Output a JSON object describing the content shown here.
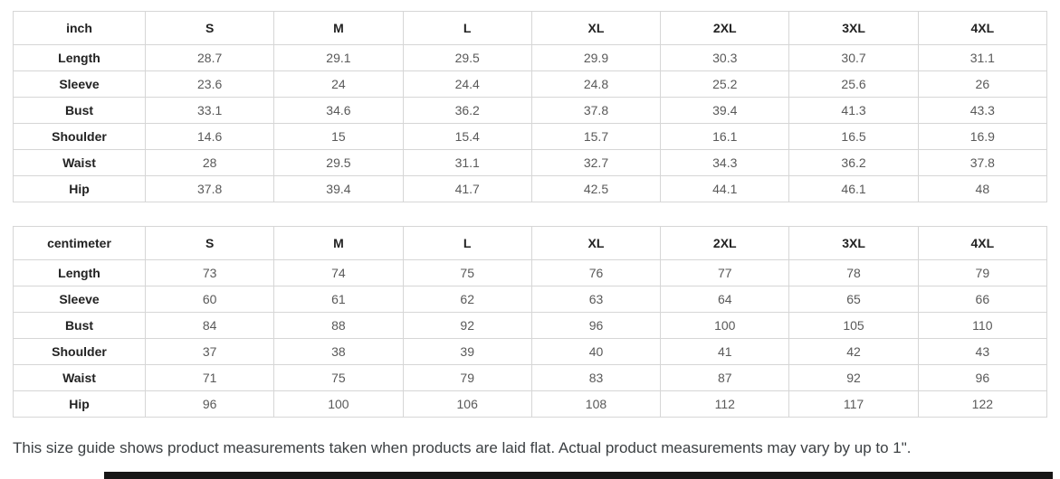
{
  "tables": [
    {
      "unit_label": "inch",
      "sizes": [
        "S",
        "M",
        "L",
        "XL",
        "2XL",
        "3XL",
        "4XL"
      ],
      "rows": [
        {
          "label": "Length",
          "values": [
            "28.7",
            "29.1",
            "29.5",
            "29.9",
            "30.3",
            "30.7",
            "31.1"
          ]
        },
        {
          "label": "Sleeve",
          "values": [
            "23.6",
            "24",
            "24.4",
            "24.8",
            "25.2",
            "25.6",
            "26"
          ]
        },
        {
          "label": "Bust",
          "values": [
            "33.1",
            "34.6",
            "36.2",
            "37.8",
            "39.4",
            "41.3",
            "43.3"
          ]
        },
        {
          "label": "Shoulder",
          "values": [
            "14.6",
            "15",
            "15.4",
            "15.7",
            "16.1",
            "16.5",
            "16.9"
          ]
        },
        {
          "label": "Waist",
          "values": [
            "28",
            "29.5",
            "31.1",
            "32.7",
            "34.3",
            "36.2",
            "37.8"
          ]
        },
        {
          "label": "Hip",
          "values": [
            "37.8",
            "39.4",
            "41.7",
            "42.5",
            "44.1",
            "46.1",
            "48"
          ]
        }
      ]
    },
    {
      "unit_label": "centimeter",
      "sizes": [
        "S",
        "M",
        "L",
        "XL",
        "2XL",
        "3XL",
        "4XL"
      ],
      "rows": [
        {
          "label": "Length",
          "values": [
            "73",
            "74",
            "75",
            "76",
            "77",
            "78",
            "79"
          ]
        },
        {
          "label": "Sleeve",
          "values": [
            "60",
            "61",
            "62",
            "63",
            "64",
            "65",
            "66"
          ]
        },
        {
          "label": "Bust",
          "values": [
            "84",
            "88",
            "92",
            "96",
            "100",
            "105",
            "110"
          ]
        },
        {
          "label": "Shoulder",
          "values": [
            "37",
            "38",
            "39",
            "40",
            "41",
            "42",
            "43"
          ]
        },
        {
          "label": "Waist",
          "values": [
            "71",
            "75",
            "79",
            "83",
            "87",
            "92",
            "96"
          ]
        },
        {
          "label": "Hip",
          "values": [
            "96",
            "100",
            "106",
            "108",
            "112",
            "117",
            "122"
          ]
        }
      ]
    }
  ],
  "footnote": "This size guide shows product measurements taken when products are laid flat. Actual product measurements may vary by up to 1\".",
  "colors": {
    "table_border": "#d6d6d6",
    "header_text": "#222222",
    "value_text": "#595959",
    "footnote_text": "#3c4043",
    "bottom_bar": "#161616"
  }
}
